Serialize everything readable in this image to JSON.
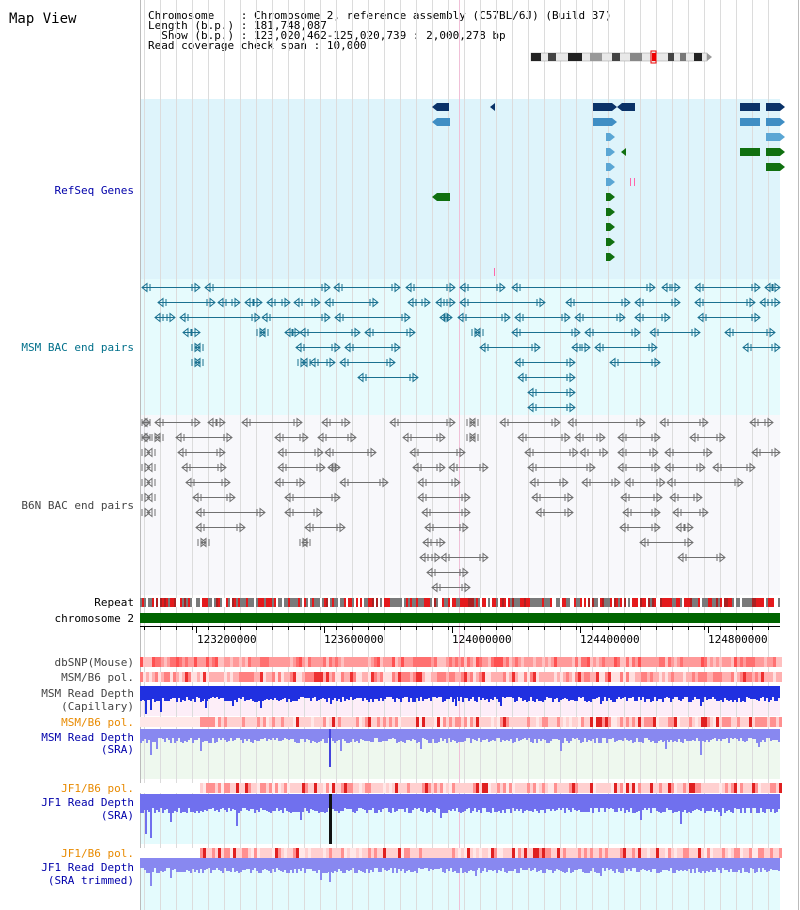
{
  "title": "Map View",
  "info": {
    "chromosome_label": "Chromosome    ",
    "chromosome_value": ": Chromosome 2, reference assembly (C57BL/6J) (Build 37)",
    "length_label": "Length (b.p.) ",
    "length_value": ": 181,748,087",
    "show_label": "  Show (b.p.) ",
    "show_value": ": 123,020,462-125,020,739 : 2,000,278 bp",
    "read_label": "Read coverage check span ",
    "read_value": ": 10,000"
  },
  "tracks": {
    "refseq": "RefSeq Genes",
    "msm_bac": "MSM BAC end pairs",
    "b6n_bac": "B6N BAC end pairs",
    "repeat": "Repeat",
    "chromosome": "chromosome 2",
    "dbsnp": "dbSNP(Mouse)",
    "msm_b6_pol_1": "MSM/B6 pol.",
    "msm_read_depth": "MSM Read Depth",
    "msm_read_depth_sub": "(Capillary)",
    "msm_b6_pol_2": "MSM/B6 pol.",
    "msm_read_depth_sra": "MSM Read Depth",
    "msm_read_depth_sra_sub": "(SRA)",
    "jf1_b6_pol_1": "JF1/B6 pol.",
    "jf1_read_depth": "JF1 Read Depth",
    "jf1_read_depth_sub": "(SRA)",
    "jf1_b6_pol_2": "JF1/B6 pol.",
    "jf1_read_depth_trim": "JF1 Read Depth",
    "jf1_read_depth_trim_sub": "(SRA trimmed)"
  },
  "axis": {
    "ticks": [
      "123200000",
      "123600000",
      "124000000",
      "124400000",
      "124800000"
    ]
  },
  "colors": {
    "refseq_bg": "#def4fb",
    "msm_bg": "#e6fbfd",
    "b6n_bg": "#f8f8fb",
    "chromosome_bar": "#006400",
    "gene_dark": "#0a3268",
    "gene_mid": "#3f8ec4",
    "gene_light": "#5aa6d4",
    "gene_green": "#107010",
    "msm_line": "#1a7090",
    "b6n_line": "#707070",
    "label_blue": "#0000aa",
    "label_teal": "#006f8a",
    "label_orange": "#e88a00",
    "label_gray": "#444444"
  }
}
